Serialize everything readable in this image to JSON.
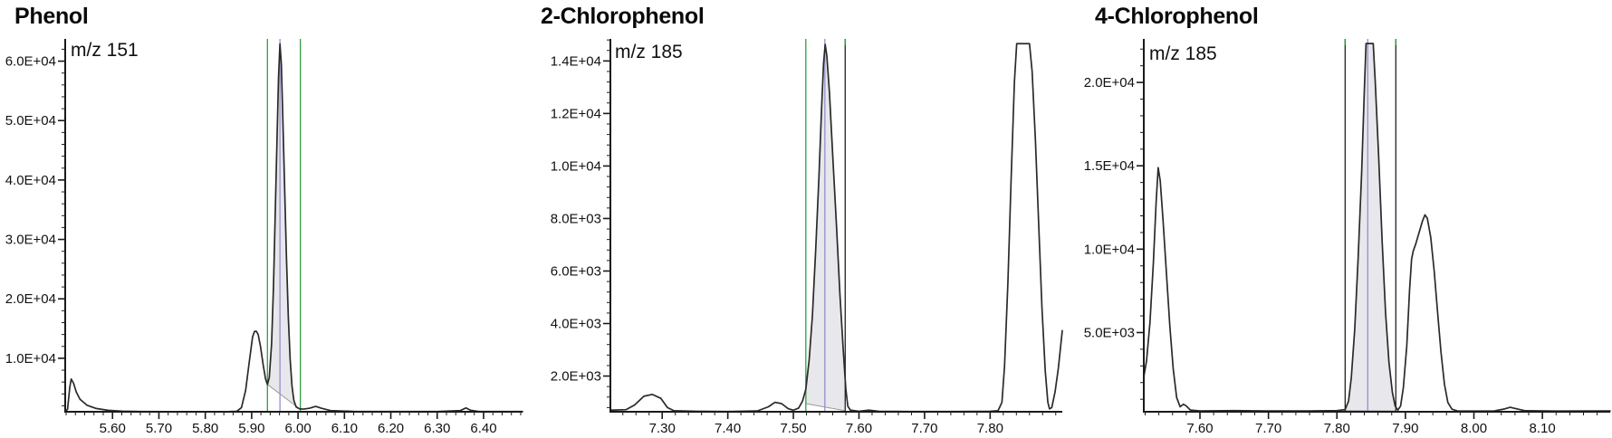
{
  "colors": {
    "background": "#ffffff",
    "curve": "#2a2a2a",
    "axis": "#1a1a1a",
    "shade": "#e7e7ec",
    "shade_baseline": "#9a9aa0",
    "green_line": "#2f9e41",
    "black_line": "#222222",
    "marker_blue": "#9090cc",
    "title_text": "#0a0a0a"
  },
  "charts": [
    {
      "title": "Phenol",
      "annotation": "m/z 151"
    },
    {
      "title": "2-Chlorophenol",
      "annotation": "m/z 185"
    },
    {
      "title": "4-Chlorophenol",
      "annotation": "m/z 185"
    }
  ],
  "chart_data": [
    {
      "type": "line",
      "title": "Phenol",
      "annotation": "m/z 151",
      "xlabel": "",
      "ylabel": "",
      "grid": false,
      "legend": "none",
      "xlim": [
        5.498,
        6.484
      ],
      "ylim": [
        1000,
        63740
      ],
      "xticks": {
        "values": [
          5.6,
          5.7,
          5.8,
          5.9,
          6.0,
          6.1,
          6.2,
          6.3,
          6.4
        ],
        "labels": [
          "5.60",
          "5.70",
          "5.80",
          "5.90",
          "6.00",
          "6.10",
          "6.20",
          "6.30",
          "6.40"
        ],
        "minor_step": 0.02
      },
      "yticks": {
        "values": [
          10000,
          20000,
          30000,
          40000,
          50000,
          60000
        ],
        "labels": [
          "1.0E+04",
          "2.0E+04",
          "3.0E+04",
          "4.0E+04",
          "5.0E+04",
          "6.0E+04"
        ],
        "minor_step": 2000
      },
      "region": {
        "window": [
          5.934,
          6.005
        ],
        "lines": [
          {
            "x": 5.934,
            "color": "green_line"
          },
          {
            "x": 6.005,
            "color": "green_line"
          }
        ],
        "marker": {
          "x": 5.961,
          "color": "marker_blue"
        },
        "baseline": [
          [
            5.934,
            5600
          ],
          [
            6.005,
            1400
          ]
        ]
      },
      "series": [
        {
          "name": "XIC m/z 151",
          "points": [
            [
              5.498,
              1050
            ],
            [
              5.503,
              1400
            ],
            [
              5.508,
              5200
            ],
            [
              5.511,
              6500
            ],
            [
              5.516,
              5800
            ],
            [
              5.522,
              4300
            ],
            [
              5.53,
              3100
            ],
            [
              5.545,
              2100
            ],
            [
              5.565,
              1550
            ],
            [
              5.59,
              1250
            ],
            [
              5.62,
              1100
            ],
            [
              5.66,
              1050
            ],
            [
              5.72,
              1030
            ],
            [
              5.8,
              1030
            ],
            [
              5.85,
              1030
            ],
            [
              5.868,
              1080
            ],
            [
              5.878,
              1700
            ],
            [
              5.887,
              4600
            ],
            [
              5.895,
              9500
            ],
            [
              5.902,
              13600
            ],
            [
              5.906,
              14500
            ],
            [
              5.91,
              14550
            ],
            [
              5.914,
              14000
            ],
            [
              5.919,
              12000
            ],
            [
              5.925,
              8800
            ],
            [
              5.93,
              6500
            ],
            [
              5.934,
              5600
            ],
            [
              5.938,
              6800
            ],
            [
              5.943,
              12500
            ],
            [
              5.947,
              22000
            ],
            [
              5.951,
              35000
            ],
            [
              5.955,
              48000
            ],
            [
              5.958,
              57500
            ],
            [
              5.961,
              62900
            ],
            [
              5.964,
              59500
            ],
            [
              5.967,
              51000
            ],
            [
              5.971,
              39000
            ],
            [
              5.975,
              27000
            ],
            [
              5.979,
              17000
            ],
            [
              5.983,
              9800
            ],
            [
              5.987,
              5300
            ],
            [
              5.991,
              2900
            ],
            [
              5.996,
              1800
            ],
            [
              6.003,
              1500
            ],
            [
              6.012,
              1450
            ],
            [
              6.025,
              1600
            ],
            [
              6.038,
              1900
            ],
            [
              6.05,
              1600
            ],
            [
              6.07,
              1200
            ],
            [
              6.12,
              1060
            ],
            [
              6.2,
              1040
            ],
            [
              6.3,
              1040
            ],
            [
              6.35,
              1200
            ],
            [
              6.362,
              1650
            ],
            [
              6.372,
              1250
            ],
            [
              6.39,
              1050
            ],
            [
              6.484,
              1040
            ]
          ]
        }
      ]
    },
    {
      "type": "line",
      "title": "2-Chlorophenol",
      "annotation": "m/z 185",
      "xlabel": "",
      "ylabel": "",
      "grid": false,
      "legend": "none",
      "xlim": [
        7.221,
        7.91
      ],
      "ylim": [
        640,
        14840
      ],
      "xticks": {
        "values": [
          7.3,
          7.4,
          7.5,
          7.6,
          7.7,
          7.8
        ],
        "labels": [
          "7.30",
          "7.40",
          "7.50",
          "7.60",
          "7.70",
          "7.80"
        ],
        "minor_step": 0.02
      },
      "yticks": {
        "values": [
          2000,
          4000,
          6000,
          8000,
          10000,
          12000,
          14000
        ],
        "labels": [
          "2.0E+03",
          "4.0E+03",
          "6.0E+03",
          "8.0E+03",
          "1.0E+04",
          "1.2E+04",
          "1.4E+04"
        ],
        "minor_step": 400
      },
      "region": {
        "window": [
          7.519,
          7.579
        ],
        "lines": [
          {
            "x": 7.519,
            "color": "green_line"
          },
          {
            "x": 7.579,
            "color": "black_line",
            "cap": "green_line"
          }
        ],
        "marker": {
          "x": 7.548,
          "color": "marker_blue"
        },
        "baseline": [
          [
            7.519,
            950
          ],
          [
            7.579,
            680
          ]
        ]
      },
      "series": [
        {
          "name": "XIC m/z 185",
          "points": [
            [
              7.221,
              700
            ],
            [
              7.245,
              720
            ],
            [
              7.258,
              900
            ],
            [
              7.272,
              1230
            ],
            [
              7.285,
              1300
            ],
            [
              7.298,
              1150
            ],
            [
              7.308,
              800
            ],
            [
              7.318,
              680
            ],
            [
              7.35,
              660
            ],
            [
              7.4,
              650
            ],
            [
              7.445,
              670
            ],
            [
              7.462,
              830
            ],
            [
              7.472,
              1000
            ],
            [
              7.482,
              950
            ],
            [
              7.492,
              760
            ],
            [
              7.5,
              700
            ],
            [
              7.508,
              780
            ],
            [
              7.514,
              1050
            ],
            [
              7.519,
              1500
            ],
            [
              7.524,
              2600
            ],
            [
              7.529,
              4300
            ],
            [
              7.534,
              6800
            ],
            [
              7.539,
              9600
            ],
            [
              7.543,
              12200
            ],
            [
              7.546,
              13900
            ],
            [
              7.5485,
              14630
            ],
            [
              7.551,
              14200
            ],
            [
              7.555,
              12800
            ],
            [
              7.56,
              10400
            ],
            [
              7.566,
              7600
            ],
            [
              7.571,
              5100
            ],
            [
              7.576,
              3000
            ],
            [
              7.58,
              1500
            ],
            [
              7.583,
              850
            ],
            [
              7.587,
              700
            ],
            [
              7.6,
              660
            ],
            [
              7.615,
              700
            ],
            [
              7.63,
              660
            ],
            [
              7.68,
              650
            ],
            [
              7.75,
              650
            ],
            [
              7.8,
              660
            ],
            [
              7.812,
              680
            ],
            [
              7.818,
              1000
            ],
            [
              7.822,
              2400
            ],
            [
              7.827,
              5500
            ],
            [
              7.832,
              9500
            ],
            [
              7.837,
              13200
            ],
            [
              7.8405,
              14660
            ],
            [
              7.86,
              14660
            ],
            [
              7.864,
              13600
            ],
            [
              7.869,
              11000
            ],
            [
              7.874,
              7800
            ],
            [
              7.879,
              4600
            ],
            [
              7.884,
              2200
            ],
            [
              7.888,
              1000
            ],
            [
              7.8905,
              750
            ],
            [
              7.894,
              800
            ],
            [
              7.899,
              1400
            ],
            [
              7.904,
              2300
            ],
            [
              7.91,
              3730
            ]
          ]
        }
      ]
    },
    {
      "type": "line",
      "title": "4-Chlorophenol",
      "annotation": "m/z 185",
      "xlabel": "",
      "ylabel": "",
      "grid": false,
      "legend": "none",
      "xlim": [
        7.518,
        8.199
      ],
      "ylim": [
        250,
        22610
      ],
      "xticks": {
        "values": [
          7.6,
          7.7,
          7.8,
          7.9,
          8.0,
          8.1
        ],
        "labels": [
          "7.60",
          "7.70",
          "7.80",
          "7.90",
          "8.00",
          "8.10"
        ],
        "minor_step": 0.02
      },
      "yticks": {
        "values": [
          5000,
          10000,
          15000,
          20000
        ],
        "labels": [
          "5.0E+03",
          "1.0E+04",
          "1.5E+04",
          "2.0E+04"
        ],
        "minor_step": 1000
      },
      "region": {
        "window": [
          7.812,
          7.886
        ],
        "lines": [
          {
            "x": 7.812,
            "color": "black_line",
            "cap": "green_line"
          },
          {
            "x": 7.886,
            "color": "black_line",
            "cap": "green_line"
          }
        ],
        "marker": {
          "x": 7.845,
          "color": "marker_blue"
        },
        "baseline": [
          [
            7.812,
            320
          ],
          [
            7.886,
            300
          ]
        ]
      },
      "series": [
        {
          "name": "XIC m/z 185",
          "points": [
            [
              7.518,
              2350
            ],
            [
              7.522,
              3300
            ],
            [
              7.527,
              5600
            ],
            [
              7.532,
              9200
            ],
            [
              7.536,
              12800
            ],
            [
              7.539,
              14890
            ],
            [
              7.542,
              14100
            ],
            [
              7.546,
              11800
            ],
            [
              7.551,
              8600
            ],
            [
              7.556,
              5400
            ],
            [
              7.561,
              2800
            ],
            [
              7.566,
              1100
            ],
            [
              7.571,
              550
            ],
            [
              7.576,
              700
            ],
            [
              7.58,
              600
            ],
            [
              7.586,
              350
            ],
            [
              7.6,
              300
            ],
            [
              7.65,
              320
            ],
            [
              7.7,
              300
            ],
            [
              7.76,
              300
            ],
            [
              7.8,
              320
            ],
            [
              7.812,
              380
            ],
            [
              7.817,
              900
            ],
            [
              7.821,
              2300
            ],
            [
              7.826,
              5200
            ],
            [
              7.831,
              9500
            ],
            [
              7.836,
              14500
            ],
            [
              7.84,
              19500
            ],
            [
              7.8425,
              22330
            ],
            [
              7.853,
              22330
            ],
            [
              7.856,
              20000
            ],
            [
              7.861,
              15500
            ],
            [
              7.866,
              10500
            ],
            [
              7.871,
              6200
            ],
            [
              7.876,
              3200
            ],
            [
              7.881,
              1400
            ],
            [
              7.885,
              600
            ],
            [
              7.889,
              350
            ],
            [
              7.893,
              600
            ],
            [
              7.897,
              1700
            ],
            [
              7.902,
              4200
            ],
            [
              7.906,
              7500
            ],
            [
              7.909,
              9400
            ],
            [
              7.9115,
              9900
            ],
            [
              7.915,
              10300
            ],
            [
              7.92,
              11000
            ],
            [
              7.925,
              11700
            ],
            [
              7.9285,
              12060
            ],
            [
              7.932,
              11850
            ],
            [
              7.937,
              10700
            ],
            [
              7.942,
              8700
            ],
            [
              7.947,
              6200
            ],
            [
              7.952,
              3800
            ],
            [
              7.957,
              1900
            ],
            [
              7.962,
              800
            ],
            [
              7.968,
              400
            ],
            [
              7.976,
              300
            ],
            [
              8.0,
              290
            ],
            [
              8.03,
              300
            ],
            [
              8.045,
              420
            ],
            [
              8.053,
              520
            ],
            [
              8.062,
              430
            ],
            [
              8.075,
              310
            ],
            [
              8.12,
              290
            ],
            [
              8.199,
              300
            ]
          ]
        }
      ]
    }
  ]
}
